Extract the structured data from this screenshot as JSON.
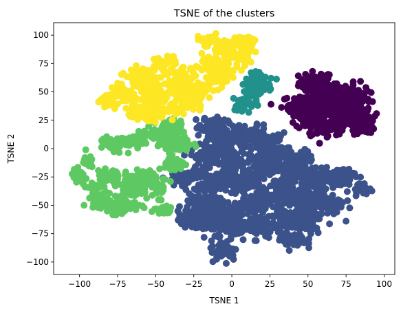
{
  "chart_data": {
    "type": "scatter",
    "title": "TSNE of the clusters",
    "xlabel": "TSNE 1",
    "ylabel": "TSNE 2",
    "xlim": [
      -117,
      107
    ],
    "ylim": [
      -111,
      111
    ],
    "xticks": [
      -100,
      -75,
      -50,
      -25,
      0,
      25,
      50,
      75,
      100
    ],
    "yticks": [
      -100,
      -75,
      -50,
      -25,
      0,
      25,
      50,
      75,
      100
    ],
    "tick_labels_x": [
      "−100",
      "−75",
      "−50",
      "−25",
      "0",
      "25",
      "50",
      "75",
      "100"
    ],
    "tick_labels_y": [
      "−100",
      "−75",
      "−50",
      "−25",
      "0",
      "25",
      "50",
      "75",
      "100"
    ],
    "grid": false,
    "legend": "none",
    "series": [
      {
        "color": "#440154",
        "blobs": [
          [
            55,
            58,
            10,
            9
          ],
          [
            68,
            48,
            14,
            10
          ],
          [
            80,
            44,
            10,
            12
          ],
          [
            48,
            38,
            14,
            8
          ],
          [
            60,
            30,
            16,
            10
          ],
          [
            78,
            25,
            12,
            10
          ],
          [
            88,
            20,
            6,
            6
          ],
          [
            62,
            18,
            14,
            6
          ],
          [
            50,
            28,
            6,
            8
          ],
          [
            72,
            40,
            8,
            8
          ],
          [
            42,
            36,
            5,
            4
          ],
          [
            58,
            44,
            6,
            6
          ]
        ]
      },
      {
        "color": "#3b528b",
        "blobs": [
          [
            -12,
            22,
            8,
            6
          ],
          [
            -10,
            10,
            12,
            10
          ],
          [
            10,
            10,
            14,
            10
          ],
          [
            25,
            5,
            10,
            8
          ],
          [
            -18,
            -8,
            8,
            10
          ],
          [
            0,
            -12,
            12,
            10
          ],
          [
            22,
            -12,
            10,
            10
          ],
          [
            -32,
            -25,
            10,
            6
          ],
          [
            -10,
            -30,
            12,
            10
          ],
          [
            10,
            -32,
            12,
            10
          ],
          [
            -22,
            -50,
            10,
            10
          ],
          [
            -5,
            -55,
            12,
            10
          ],
          [
            15,
            -48,
            10,
            10
          ],
          [
            -20,
            -65,
            10,
            8
          ],
          [
            0,
            -70,
            10,
            10
          ],
          [
            18,
            -68,
            10,
            10
          ],
          [
            -5,
            -90,
            8,
            8
          ],
          [
            40,
            -20,
            12,
            10
          ],
          [
            55,
            -25,
            12,
            10
          ],
          [
            70,
            -25,
            10,
            8
          ],
          [
            85,
            -35,
            6,
            4
          ],
          [
            35,
            -40,
            10,
            10
          ],
          [
            50,
            -45,
            12,
            10
          ],
          [
            65,
            -50,
            8,
            10
          ],
          [
            35,
            -62,
            10,
            10
          ],
          [
            48,
            -65,
            10,
            10
          ],
          [
            40,
            -80,
            8,
            8
          ],
          [
            28,
            -5,
            8,
            6
          ],
          [
            -28,
            -62,
            6,
            4
          ],
          [
            45,
            -8,
            8,
            6
          ]
        ]
      },
      {
        "color": "#21918c",
        "blobs": [
          [
            18,
            62,
            8,
            5
          ],
          [
            15,
            52,
            7,
            6
          ],
          [
            9,
            42,
            6,
            6
          ],
          [
            22,
            55,
            4,
            5
          ],
          [
            4,
            36,
            3,
            3
          ]
        ]
      },
      {
        "color": "#5ec962",
        "blobs": [
          [
            -40,
            20,
            8,
            8
          ],
          [
            -35,
            5,
            8,
            10
          ],
          [
            -48,
            10,
            6,
            8
          ],
          [
            -38,
            -15,
            6,
            6
          ],
          [
            -70,
            5,
            10,
            6
          ],
          [
            -60,
            8,
            6,
            5
          ],
          [
            -80,
            5,
            6,
            4
          ],
          [
            -95,
            -12,
            4,
            6
          ],
          [
            -100,
            -25,
            5,
            6
          ],
          [
            -80,
            -25,
            8,
            8
          ],
          [
            -65,
            -30,
            8,
            8
          ],
          [
            -85,
            -45,
            8,
            8
          ],
          [
            -70,
            -48,
            10,
            8
          ],
          [
            -55,
            -25,
            8,
            6
          ],
          [
            -48,
            -35,
            6,
            8
          ],
          [
            -75,
            -52,
            8,
            5
          ],
          [
            -45,
            -55,
            5,
            4
          ],
          [
            -90,
            -35,
            5,
            5
          ]
        ]
      },
      {
        "color": "#fde725",
        "blobs": [
          [
            -15,
            95,
            8,
            5
          ],
          [
            -5,
            88,
            6,
            6
          ],
          [
            5,
            90,
            8,
            6
          ],
          [
            -15,
            75,
            8,
            8
          ],
          [
            -10,
            60,
            6,
            6
          ],
          [
            -5,
            70,
            8,
            8
          ],
          [
            5,
            80,
            6,
            6
          ],
          [
            -45,
            75,
            8,
            6
          ],
          [
            -60,
            65,
            10,
            6
          ],
          [
            -35,
            62,
            8,
            8
          ],
          [
            -70,
            50,
            10,
            8
          ],
          [
            -50,
            48,
            10,
            10
          ],
          [
            -30,
            50,
            8,
            8
          ],
          [
            -80,
            42,
            8,
            5
          ],
          [
            -60,
            35,
            8,
            8
          ],
          [
            -40,
            35,
            8,
            6
          ],
          [
            -55,
            28,
            8,
            4
          ],
          [
            -25,
            40,
            6,
            6
          ],
          [
            -20,
            52,
            6,
            6
          ],
          [
            10,
            95,
            5,
            4
          ]
        ]
      }
    ]
  }
}
